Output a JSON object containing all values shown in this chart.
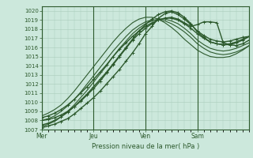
{
  "xlabel": "Pression niveau de la mer( hPa )",
  "ylim": [
    1007,
    1020.5
  ],
  "yticks": [
    1007,
    1008,
    1009,
    1010,
    1011,
    1012,
    1013,
    1014,
    1015,
    1016,
    1017,
    1018,
    1019,
    1020
  ],
  "xtick_labels": [
    "Mer",
    "Jeu",
    "Ven",
    "Sam"
  ],
  "xtick_positions": [
    0,
    48,
    96,
    144
  ],
  "total_points": 192,
  "bg_color": "#cce8dc",
  "grid_color": "#aaccbb",
  "line_color": "#2d5a2d",
  "axes_color": "#2d5a2d",
  "series": [
    {
      "x": [
        0,
        6,
        12,
        18,
        24,
        30,
        36,
        42,
        48,
        54,
        60,
        66,
        72,
        78,
        84,
        90,
        96,
        102,
        108,
        114,
        120,
        126,
        132,
        138,
        144,
        150,
        156,
        162,
        168,
        174,
        180,
        186,
        192
      ],
      "y": [
        1007.2,
        1007.4,
        1007.6,
        1007.9,
        1008.2,
        1008.7,
        1009.3,
        1009.9,
        1010.5,
        1011.2,
        1012.0,
        1012.8,
        1013.6,
        1014.5,
        1015.4,
        1016.4,
        1017.5,
        1018.3,
        1019.2,
        1019.7,
        1019.9,
        1019.6,
        1019.1,
        1018.5,
        1017.8,
        1017.3,
        1016.9,
        1016.7,
        1016.6,
        1016.7,
        1016.9,
        1017.1,
        1017.2
      ],
      "lw": 1.0,
      "marker": true
    },
    {
      "x": [
        0,
        6,
        12,
        18,
        24,
        30,
        36,
        42,
        48,
        54,
        60,
        66,
        72,
        78,
        84,
        90,
        96,
        102,
        108,
        114,
        120,
        126,
        132,
        138,
        144,
        150,
        156,
        162,
        168,
        174,
        180,
        186,
        192
      ],
      "y": [
        1007.5,
        1007.7,
        1008.0,
        1008.4,
        1008.9,
        1009.5,
        1010.2,
        1010.9,
        1011.7,
        1012.5,
        1013.3,
        1014.2,
        1015.1,
        1016.0,
        1016.9,
        1017.8,
        1018.5,
        1019.1,
        1019.6,
        1019.9,
        1020.0,
        1019.8,
        1019.3,
        1018.6,
        1017.7,
        1017.1,
        1016.6,
        1016.4,
        1016.3,
        1016.4,
        1016.6,
        1016.9,
        1017.2
      ],
      "lw": 1.0,
      "marker": true
    },
    {
      "x": [
        0,
        6,
        12,
        18,
        24,
        30,
        36,
        42,
        48,
        54,
        60,
        66,
        72,
        78,
        84,
        90,
        96,
        102,
        108,
        114,
        120,
        126,
        132,
        138,
        144,
        150,
        156,
        162,
        168,
        174,
        180,
        186,
        192
      ],
      "y": [
        1008.0,
        1008.1,
        1008.3,
        1008.6,
        1009.0,
        1009.5,
        1010.1,
        1010.8,
        1011.5,
        1012.3,
        1013.2,
        1014.1,
        1015.0,
        1015.9,
        1016.8,
        1017.5,
        1018.1,
        1018.6,
        1019.0,
        1019.2,
        1019.3,
        1019.1,
        1018.7,
        1018.3,
        1018.5,
        1018.8,
        1018.8,
        1018.7,
        1016.5,
        1016.3,
        1016.2,
        1016.4,
        1016.8
      ],
      "lw": 1.0,
      "marker": true
    },
    {
      "x": [
        0,
        6,
        12,
        18,
        24,
        30,
        36,
        42,
        48,
        54,
        60,
        66,
        72,
        78,
        84,
        90,
        96,
        102,
        108,
        114,
        120,
        126,
        132,
        138,
        144,
        150,
        156,
        162,
        168,
        174,
        180,
        186,
        192
      ],
      "y": [
        1008.3,
        1008.5,
        1008.8,
        1009.2,
        1009.7,
        1010.3,
        1011.0,
        1011.7,
        1012.5,
        1013.3,
        1014.1,
        1015.0,
        1015.8,
        1016.5,
        1017.2,
        1017.8,
        1018.3,
        1018.7,
        1019.0,
        1019.2,
        1019.2,
        1019.0,
        1018.6,
        1018.1,
        1017.5,
        1017.0,
        1016.6,
        1016.4,
        1016.3,
        1016.3,
        1016.5,
        1016.8,
        1017.2
      ],
      "lw": 1.0,
      "marker": true
    },
    {
      "x": [
        0,
        6,
        12,
        18,
        24,
        30,
        36,
        42,
        48,
        54,
        60,
        66,
        72,
        78,
        84,
        90,
        96,
        102,
        108,
        114,
        120,
        126,
        132,
        138,
        144,
        150,
        156,
        162,
        168,
        174,
        180,
        186,
        192
      ],
      "y": [
        1007.3,
        1007.6,
        1007.9,
        1008.4,
        1009.0,
        1009.7,
        1010.5,
        1011.3,
        1012.2,
        1013.1,
        1014.0,
        1015.0,
        1015.9,
        1016.7,
        1017.5,
        1018.1,
        1018.6,
        1018.9,
        1019.1,
        1019.1,
        1018.9,
        1018.6,
        1018.1,
        1017.5,
        1016.8,
        1016.3,
        1015.9,
        1015.7,
        1015.6,
        1015.7,
        1015.9,
        1016.2,
        1016.5
      ],
      "lw": 0.8,
      "marker": false
    },
    {
      "x": [
        0,
        6,
        12,
        18,
        24,
        30,
        36,
        42,
        48,
        54,
        60,
        66,
        72,
        78,
        84,
        90,
        96,
        102,
        108,
        114,
        120,
        126,
        132,
        138,
        144,
        150,
        156,
        162,
        168,
        174,
        180,
        186,
        192
      ],
      "y": [
        1008.0,
        1008.2,
        1008.5,
        1009.0,
        1009.6,
        1010.3,
        1011.1,
        1012.0,
        1012.9,
        1013.8,
        1014.7,
        1015.6,
        1016.4,
        1017.2,
        1017.9,
        1018.4,
        1018.8,
        1019.0,
        1019.0,
        1018.9,
        1018.6,
        1018.2,
        1017.7,
        1017.1,
        1016.4,
        1015.9,
        1015.5,
        1015.3,
        1015.2,
        1015.3,
        1015.5,
        1015.8,
        1016.2
      ],
      "lw": 0.8,
      "marker": false
    },
    {
      "x": [
        0,
        6,
        12,
        18,
        24,
        30,
        36,
        42,
        48,
        54,
        60,
        66,
        72,
        78,
        84,
        90,
        96,
        102,
        108,
        114,
        120,
        126,
        132,
        138,
        144,
        150,
        156,
        162,
        168,
        174,
        180,
        186,
        192
      ],
      "y": [
        1008.5,
        1008.8,
        1009.2,
        1009.7,
        1010.4,
        1011.2,
        1012.1,
        1013.0,
        1013.9,
        1014.8,
        1015.7,
        1016.6,
        1017.4,
        1018.1,
        1018.7,
        1019.1,
        1019.3,
        1019.3,
        1019.1,
        1018.7,
        1018.2,
        1017.6,
        1016.9,
        1016.3,
        1015.7,
        1015.3,
        1015.0,
        1014.9,
        1014.9,
        1015.0,
        1015.3,
        1015.7,
        1016.2
      ],
      "lw": 0.8,
      "marker": false
    }
  ]
}
